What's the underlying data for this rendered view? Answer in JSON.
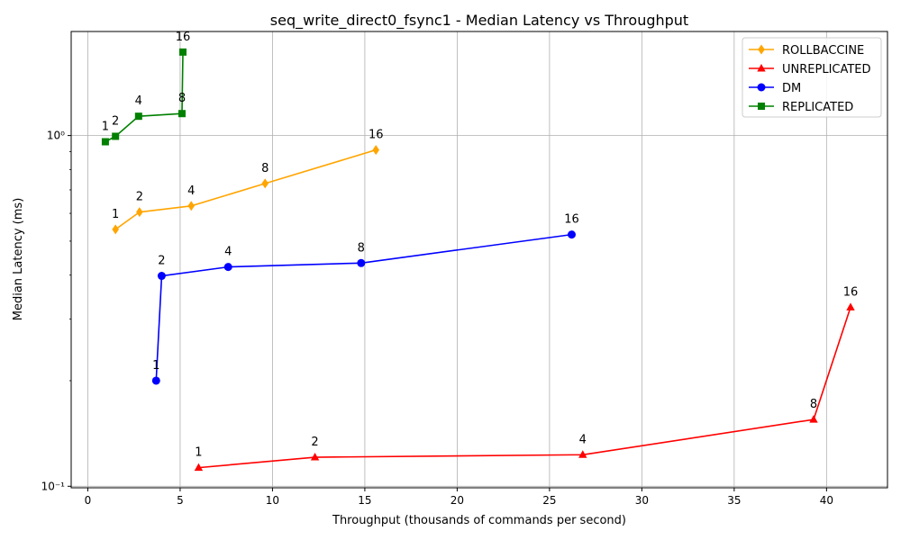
{
  "chart_data": {
    "type": "line",
    "title": "seq_write_direct0_fsync1 - Median Latency vs Throughput",
    "xlabel": "Throughput (thousands of commands per second)",
    "ylabel": "Median Latency (ms)",
    "x_scale": "linear",
    "y_scale": "log",
    "xlim": [
      -0.9,
      43.3
    ],
    "ylim": [
      0.099,
      1.98
    ],
    "x_ticks": [
      0,
      5,
      10,
      15,
      20,
      25,
      30,
      35,
      40
    ],
    "x_tick_labels": [
      "0",
      "5",
      "10",
      "15",
      "20",
      "25",
      "30",
      "35",
      "40"
    ],
    "y_ticks": [
      0.1,
      1
    ],
    "y_tick_labels": [
      "10⁻¹",
      "10⁰"
    ],
    "grid": true,
    "legend_position": "top-right",
    "series": [
      {
        "name": "ROLLBACCINE",
        "color": "#ffa500",
        "marker": "diamond",
        "x": [
          1.5,
          2.8,
          5.6,
          9.6,
          15.6
        ],
        "y": [
          0.54,
          0.605,
          0.63,
          0.73,
          0.91
        ],
        "point_labels": [
          "1",
          "2",
          "4",
          "8",
          "16"
        ]
      },
      {
        "name": "UNREPLICATED",
        "color": "#ff0000",
        "marker": "triangle",
        "x": [
          6.0,
          12.3,
          26.8,
          39.3,
          41.3
        ],
        "y": [
          0.113,
          0.121,
          0.123,
          0.155,
          0.324
        ],
        "point_labels": [
          "1",
          "2",
          "4",
          "8",
          "16"
        ]
      },
      {
        "name": "DM",
        "color": "#0000ff",
        "marker": "circle",
        "x": [
          3.7,
          4.0,
          7.6,
          14.8,
          26.2
        ],
        "y": [
          0.2,
          0.398,
          0.422,
          0.433,
          0.522
        ],
        "point_labels": [
          "1",
          "2",
          "4",
          "8",
          "16"
        ]
      },
      {
        "name": "REPLICATED",
        "color": "#008000",
        "marker": "square",
        "x": [
          0.95,
          1.5,
          2.75,
          5.1,
          5.15
        ],
        "y": [
          0.96,
          0.995,
          1.135,
          1.155,
          1.73
        ],
        "point_labels": [
          "1",
          "2",
          "4",
          "8",
          "16"
        ]
      }
    ]
  }
}
